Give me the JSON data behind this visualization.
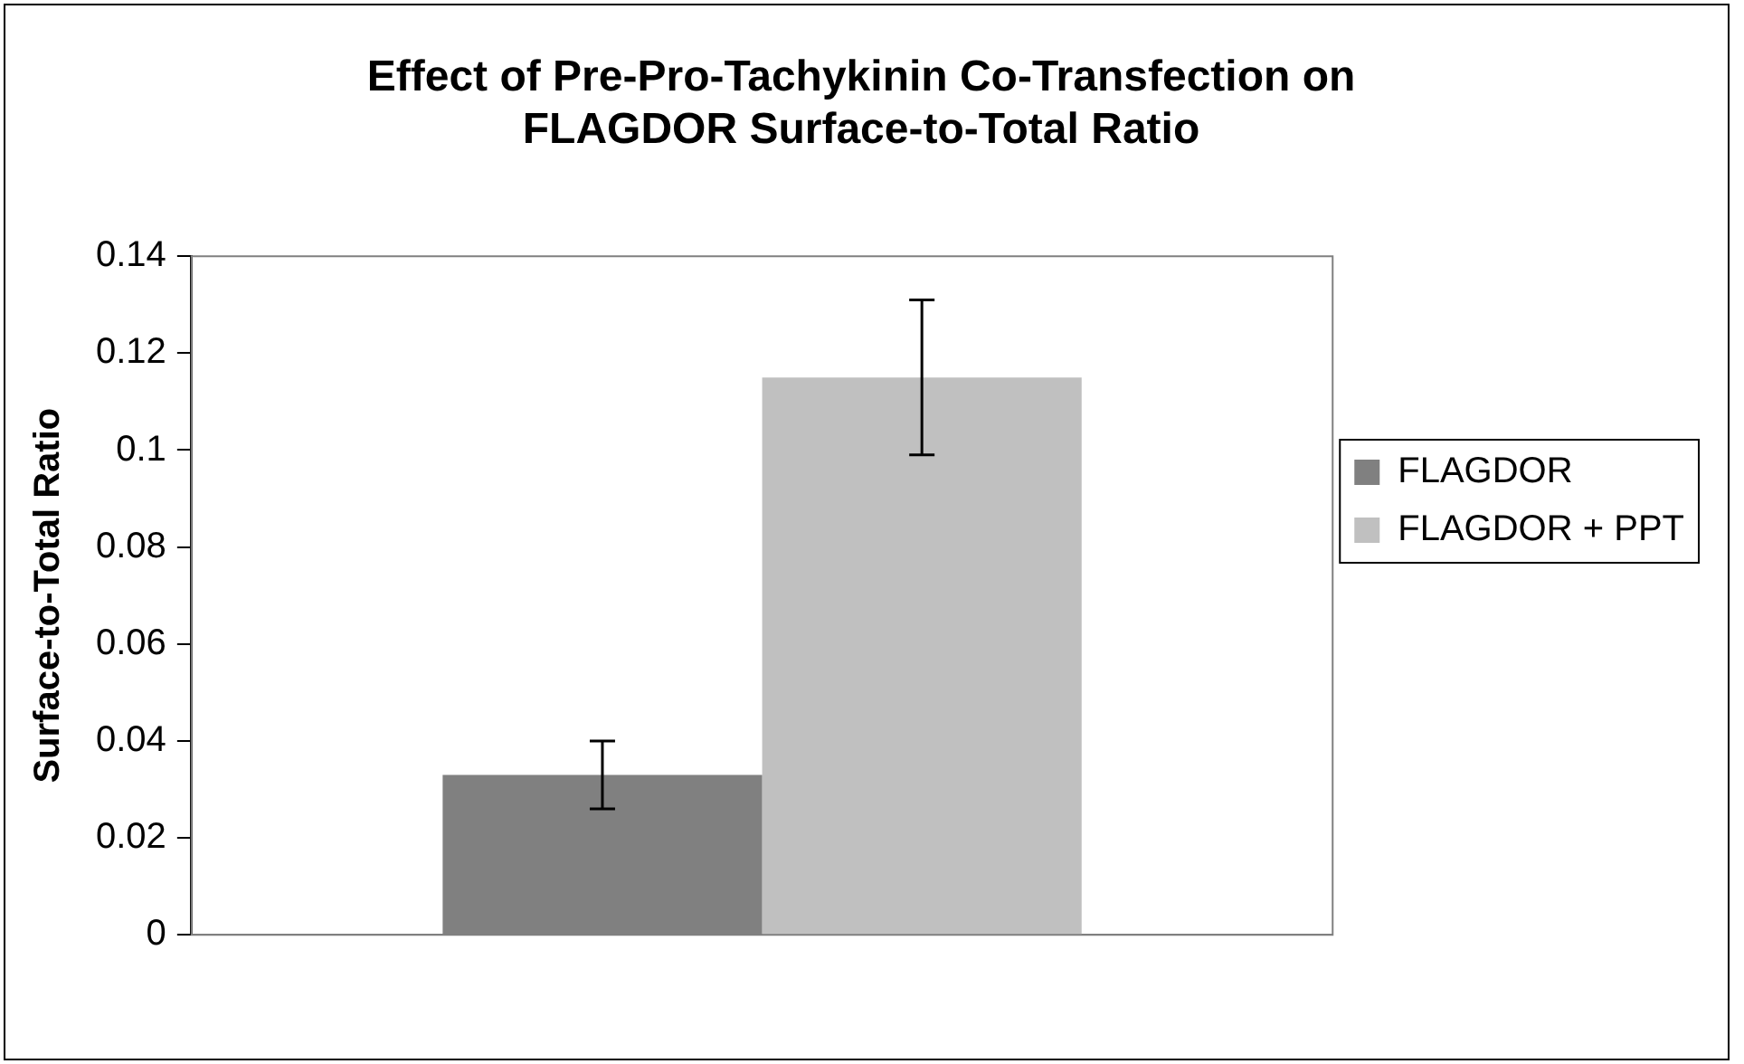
{
  "chart_data": {
    "type": "bar",
    "title": "Effect of Pre-Pro-Tachykinin Co-Transfection on FLAGDOR Surface-to-Total Ratio",
    "ylabel": "Surface-to-Total Ratio",
    "categories": [
      null
    ],
    "series": [
      {
        "name": "FLAGDOR",
        "color": "#808080",
        "values": [
          0.033
        ],
        "errors": [
          0.007
        ]
      },
      {
        "name": "FLAGDOR + PPT",
        "color": "#c0c0c0",
        "values": [
          0.115
        ],
        "errors": [
          0.016
        ]
      }
    ],
    "ylim": [
      0,
      0.14
    ],
    "yticks": [
      0,
      0.02,
      0.04,
      0.06,
      0.08,
      0.1,
      0.12,
      0.14
    ],
    "grid": false,
    "legend": "right"
  }
}
